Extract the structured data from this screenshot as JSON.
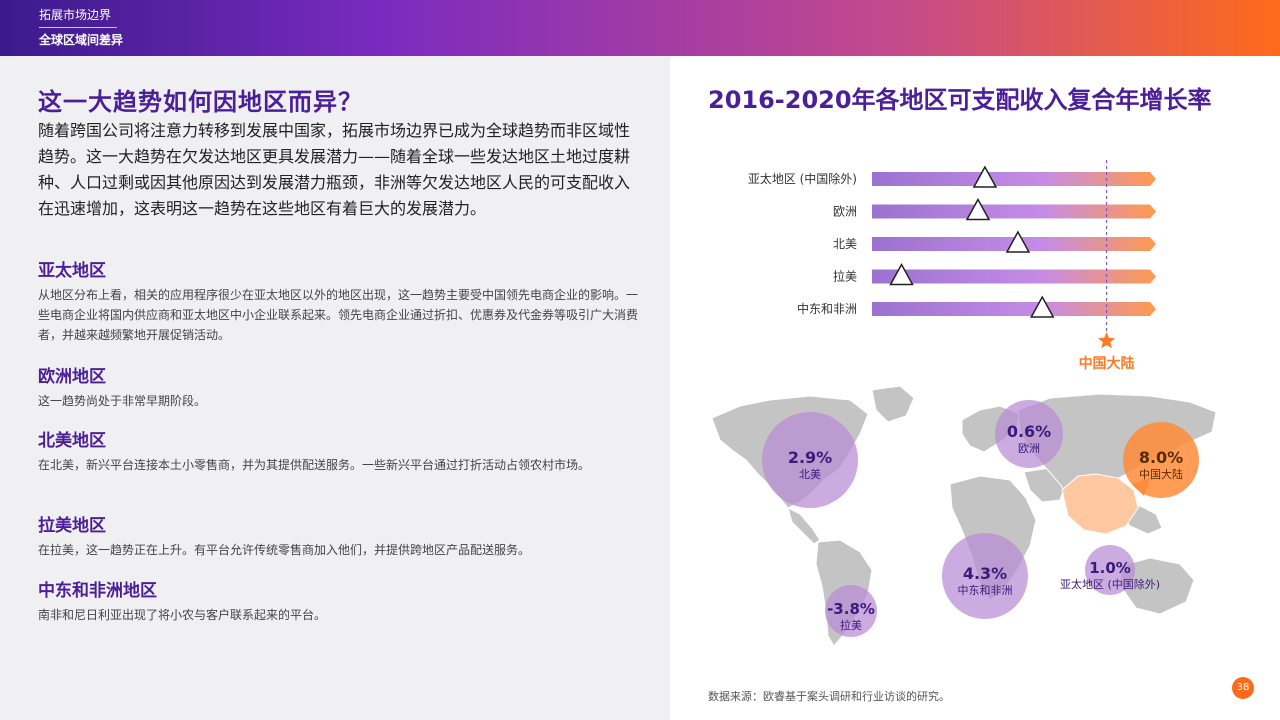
{
  "header": {
    "line1": "拓展市场边界",
    "line2": "全球区域间差异"
  },
  "left": {
    "title": "这一大趋势如何因地区而异？",
    "intro": "随着跨国公司将注意力转移到发展中国家，拓展市场边界已成为全球趋势而非区域性趋势。这一大趋势在欠发达地区更具发展潜力——随着全球一些发达地区土地过度耕种、人口过剩或因其他原因达到发展潜力瓶颈，非洲等欠发达地区人民的可支配收入在迅速增加，这表明这一趋势在这些地区有着巨大的发展潜力。",
    "sections": [
      {
        "heading": "亚太地区",
        "body": "从地区分布上看，相关的应用程序很少在亚太地区以外的地区出现，这一趋势主要受中国领先电商企业的影响。一些电商企业将国内供应商和亚太地区中小企业联系起来。领先电商企业通过折扣、优惠券及代金券等吸引广大消费者，并越来越频繁地开展促销活动。"
      },
      {
        "heading": "欧洲地区",
        "body": "这一趋势尚处于非常早期阶段。"
      },
      {
        "heading": "北美地区",
        "body": "在北美，新兴平台连接本土小零售商，并为其提供配送服务。一些新兴平台通过打折活动占领农村市场。"
      },
      {
        "heading": "拉美地区",
        "body": "在拉美，这一趋势正在上升。有平台允许传统零售商加入他们，并提供跨地区产品配送服务。"
      },
      {
        "heading": "中东和非洲地区",
        "body": "南非和尼日利亚出现了将小农与客户联系起来的平台。"
      }
    ]
  },
  "right": {
    "title": "2016-2020年各地区可支配收入复合年增长率",
    "source": "数据来源：欧睿基于案头调研和行业访谈的研究。",
    "page": "38"
  },
  "chart_data": [
    {
      "type": "scatter",
      "title": "2016-2020年各地区可支配收入复合年增长率",
      "categories": [
        "亚太地区 (中国除外)",
        "欧洲",
        "北美",
        "拉美",
        "中东和非洲"
      ],
      "values": [
        1.0,
        0.6,
        2.9,
        -3.8,
        4.3
      ],
      "reference": {
        "label": "中国大陆",
        "value": 8.0
      },
      "xlim": [
        -5.5,
        10.5
      ],
      "colors": {
        "bar_start": "#9b72cf",
        "bar_mid": "#c58ce6",
        "bar_end": "#ff9a4d",
        "marker": "#ff7a26",
        "reference_label": "#ff7a26"
      }
    },
    {
      "type": "map",
      "regions": [
        {
          "name": "北美",
          "value": "2.9%",
          "color": "#b98bd6"
        },
        {
          "name": "欧洲",
          "value": "0.6%",
          "color": "#b98bd6"
        },
        {
          "name": "中国大陆",
          "value": "8.0%",
          "color": "#ff8c3a"
        },
        {
          "name": "中东和非洲",
          "value": "4.3%",
          "color": "#b98bd6"
        },
        {
          "name": "亚太地区 (中国除外)",
          "value": "1.0%",
          "color": "#b98bd6"
        },
        {
          "name": "拉美",
          "value": "-3.8%",
          "color": "#b98bd6"
        }
      ]
    }
  ]
}
